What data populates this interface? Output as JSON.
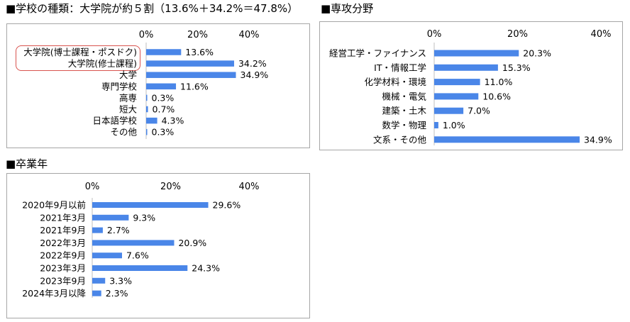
{
  "sections": {
    "school": "■学校の種類：大学院が約５割（13.6%＋34.2%＝47.8%）",
    "field": "■専攻分野",
    "year": "■卒業年"
  },
  "colors": {
    "bar": "#4a86e8",
    "highlight": "#d9534f"
  },
  "chart_data": [
    {
      "id": "school",
      "type": "bar",
      "orientation": "horizontal",
      "title": "学校の種類：大学院が約５割（13.6%＋34.2%＝47.8%）",
      "categories": [
        "大学院(博士課程・ポスドク)",
        "大学院(修士課程)",
        "大学",
        "専門学校",
        "高専",
        "短大",
        "日本語学校",
        "その他"
      ],
      "values": [
        13.6,
        34.2,
        34.9,
        11.6,
        0.3,
        0.7,
        4.3,
        0.3
      ],
      "value_labels": [
        "13.6%",
        "34.2%",
        "34.9%",
        "11.6%",
        "0.3%",
        "0.7%",
        "4.3%",
        "0.3%"
      ],
      "ticks": [
        "0%",
        "20%",
        "40%"
      ],
      "xlim": [
        0,
        40
      ],
      "highlighted_categories": [
        "大学院(博士課程・ポスドク)",
        "大学院(修士課程)"
      ]
    },
    {
      "id": "field",
      "type": "bar",
      "orientation": "horizontal",
      "title": "専攻分野",
      "categories": [
        "経営工学・ファイナンス",
        "IT・情報工学",
        "化学材料・環境",
        "機械・電気",
        "建築・土木",
        "数学・物理",
        "文系・その他"
      ],
      "values": [
        20.3,
        15.3,
        11.0,
        10.6,
        7.0,
        1.0,
        34.9
      ],
      "value_labels": [
        "20.3%",
        "15.3%",
        "11.0%",
        "10.6%",
        "7.0%",
        "1.0%",
        "34.9%"
      ],
      "ticks": [
        "0%",
        "20%",
        "40%"
      ],
      "xlim": [
        0,
        40
      ]
    },
    {
      "id": "year",
      "type": "bar",
      "orientation": "horizontal",
      "title": "卒業年",
      "categories": [
        "2020年9月以前",
        "2021年3月",
        "2021年9月",
        "2022年3月",
        "2022年9月",
        "2023年3月",
        "2023年9月",
        "2024年3月以降"
      ],
      "values": [
        29.6,
        9.3,
        2.7,
        20.9,
        7.6,
        24.3,
        3.3,
        2.3
      ],
      "value_labels": [
        "29.6%",
        "9.3%",
        "2.7%",
        "20.9%",
        "7.6%",
        "24.3%",
        "3.3%",
        "2.3%"
      ],
      "ticks": [
        "0%",
        "20%",
        "40%"
      ],
      "xlim": [
        0,
        40
      ]
    }
  ]
}
